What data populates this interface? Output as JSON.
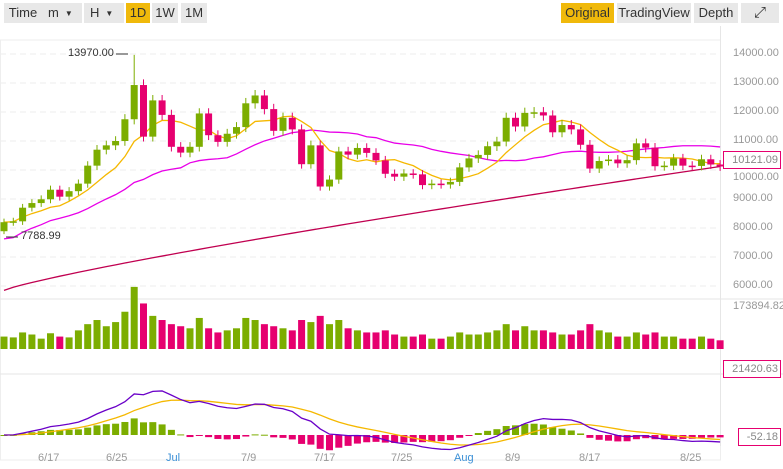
{
  "toolbar": {
    "time": "Time",
    "minute": "m",
    "hour": "H",
    "intervals": [
      "1D",
      "1W",
      "1M"
    ],
    "active_interval": "1D",
    "views": [
      "Original",
      "TradingView",
      "Depth"
    ],
    "active_view": "Original",
    "fullscreen_icon": "expand-icon"
  },
  "price_axis": [
    "14000.00",
    "13000.00",
    "12000.00",
    "11000.00",
    "10000.00",
    "9000.00",
    "8000.00",
    "7000.00",
    "6000.00"
  ],
  "annotations": {
    "high": "13970.00",
    "low": "7788.99"
  },
  "tags": {
    "last_price": "10121.09",
    "volume_max": "173894.82",
    "volume_last": "21420.63",
    "macd_last": "-52.18"
  },
  "x_labels": [
    "6/17",
    "6/25",
    "Jul",
    "7/9",
    "7/17",
    "7/25",
    "Aug",
    "8/9",
    "8/17",
    "8/25"
  ],
  "colors": {
    "up": "#7cad00",
    "down": "#e6006f",
    "accent": "#f0b90b",
    "ma_short": "#f5b800",
    "ma_mid": "#e800e8",
    "ma_long": "#c00050",
    "macd_line": "#6a00c8"
  },
  "chart_data": {
    "type": "candlestick",
    "x_start": "6/12",
    "open_first": 7889,
    "closes": [
      8200,
      8230,
      8700,
      8860,
      8990,
      9320,
      9080,
      9270,
      9530,
      10150,
      10700,
      10850,
      11000,
      11750,
      12930,
      11150,
      12400,
      11900,
      10800,
      10600,
      10800,
      11950,
      11200,
      10970,
      11250,
      11480,
      12300,
      12570,
      12100,
      11350,
      11800,
      11400,
      10200,
      10850,
      9430,
      9670,
      10640,
      10530,
      10760,
      10590,
      10330,
      9870,
      9770,
      9880,
      9850,
      9480,
      9530,
      9500,
      9590,
      10090,
      10400,
      10520,
      10820,
      10980,
      11800,
      11500,
      11970,
      11990,
      11880,
      11300,
      11550,
      11400,
      10870,
      10050,
      10310,
      10360,
      10230,
      10340,
      10920,
      10770,
      10130,
      10150,
      10400,
      10150,
      10140,
      10370,
      10190,
      10121
    ],
    "volume": [
      30,
      28,
      40,
      35,
      25,
      38,
      30,
      28,
      45,
      60,
      70,
      55,
      65,
      90,
      150,
      110,
      80,
      70,
      60,
      55,
      50,
      75,
      50,
      40,
      45,
      50,
      75,
      70,
      60,
      55,
      50,
      45,
      70,
      65,
      80,
      60,
      70,
      50,
      45,
      40,
      40,
      45,
      35,
      30,
      30,
      35,
      25,
      25,
      30,
      40,
      35,
      35,
      40,
      45,
      60,
      45,
      55,
      45,
      45,
      40,
      35,
      35,
      45,
      60,
      45,
      40,
      30,
      30,
      40,
      35,
      40,
      30,
      30,
      25,
      25,
      30,
      25,
      21
    ],
    "price_range": [
      5700,
      14500
    ],
    "volume_max": 173894.82
  }
}
